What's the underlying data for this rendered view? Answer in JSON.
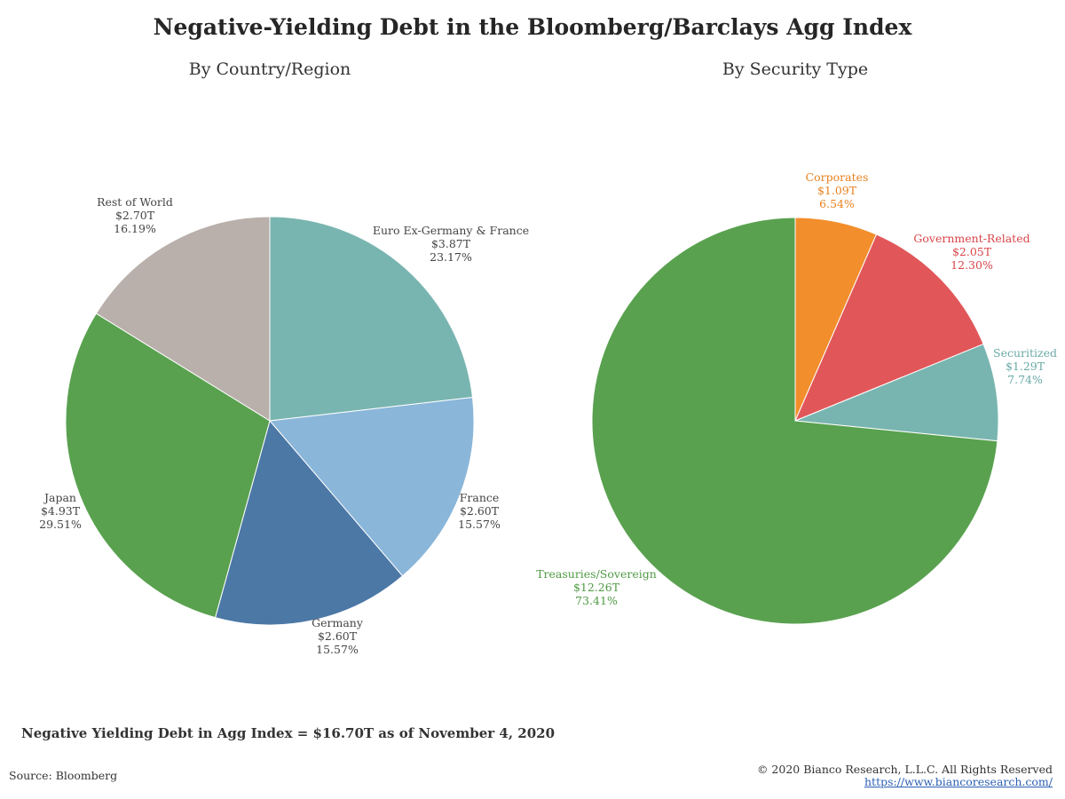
{
  "title": "Negative-Yielding Debt in the Bloomberg/Barclays Agg Index",
  "summary": "Negative Yielding Debt in Agg Index = $16.70T as of November 4, 2020",
  "source": "Source: Bloomberg",
  "copyright": "© 2020 Bianco Research, L.L.C. All Rights Reserved",
  "website": "https://www.biancoresearch.com/",
  "chart_data": [
    {
      "type": "pie",
      "title": "By Country/Region",
      "slices": [
        {
          "label": "Euro Ex-Germany & France",
          "amount": "$3.87T",
          "pct_label": "23.17%",
          "value": 23.17,
          "color": "#79b5b0",
          "text_color": "#444444"
        },
        {
          "label": "France",
          "amount": "$2.60T",
          "pct_label": "15.57%",
          "value": 15.57,
          "color": "#8ab6d9",
          "text_color": "#444444"
        },
        {
          "label": "Germany",
          "amount": "$2.60T",
          "pct_label": "15.57%",
          "value": 15.57,
          "color": "#4c78a6",
          "text_color": "#444444"
        },
        {
          "label": "Japan",
          "amount": "$4.93T",
          "pct_label": "29.51%",
          "value": 29.51,
          "color": "#59a14f",
          "text_color": "#444444"
        },
        {
          "label": "Rest of World",
          "amount": "$2.70T",
          "pct_label": "16.19%",
          "value": 16.19,
          "color": "#b9b0ab",
          "text_color": "#444444"
        }
      ]
    },
    {
      "type": "pie",
      "title": "By Security Type",
      "slices": [
        {
          "label": "Corporates",
          "amount": "$1.09T",
          "pct_label": "6.54%",
          "value": 6.54,
          "color": "#f28e2c",
          "text_color": "#e8821f"
        },
        {
          "label": "Government-Related",
          "amount": "$2.05T",
          "pct_label": "12.30%",
          "value": 12.3,
          "color": "#e15759",
          "text_color": "#d9454a"
        },
        {
          "label": "Securitized",
          "amount": "$1.29T",
          "pct_label": "7.74%",
          "value": 7.74,
          "color": "#79b5b0",
          "text_color": "#6aa9a6"
        },
        {
          "label": "Treasuries/Sovereign",
          "amount": "$12.26T",
          "pct_label": "73.41%",
          "value": 73.41,
          "color": "#59a14f",
          "text_color": "#4f9a44"
        }
      ]
    }
  ]
}
